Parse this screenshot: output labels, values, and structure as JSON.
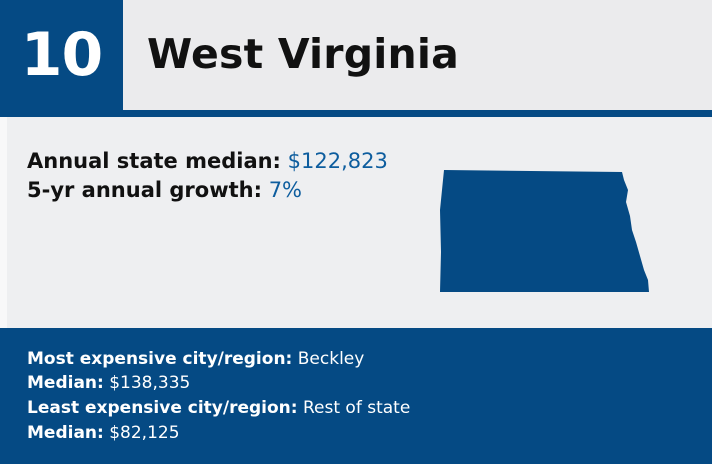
{
  "header": {
    "rank": "10",
    "state_name": "West Virginia"
  },
  "stats": {
    "median_label": "Annual state median:",
    "median_value": "$122,823",
    "growth_label": "5-yr annual growth:",
    "growth_value": "7%"
  },
  "map": {
    "icon": "state-outline-icon",
    "fill_color": "#054a84"
  },
  "footer": {
    "most_expensive_label": "Most expensive city/region:",
    "most_expensive_value": "Beckley",
    "most_median_label": "Median:",
    "most_median_value": "$138,335",
    "least_expensive_label": "Least expensive city/region:",
    "least_expensive_value": "Rest of state",
    "least_median_label": "Median:",
    "least_median_value": "$82,125"
  },
  "colors": {
    "brand_blue": "#054a84",
    "value_blue": "#0d5d9e",
    "panel_gray": "#eeeff1"
  }
}
